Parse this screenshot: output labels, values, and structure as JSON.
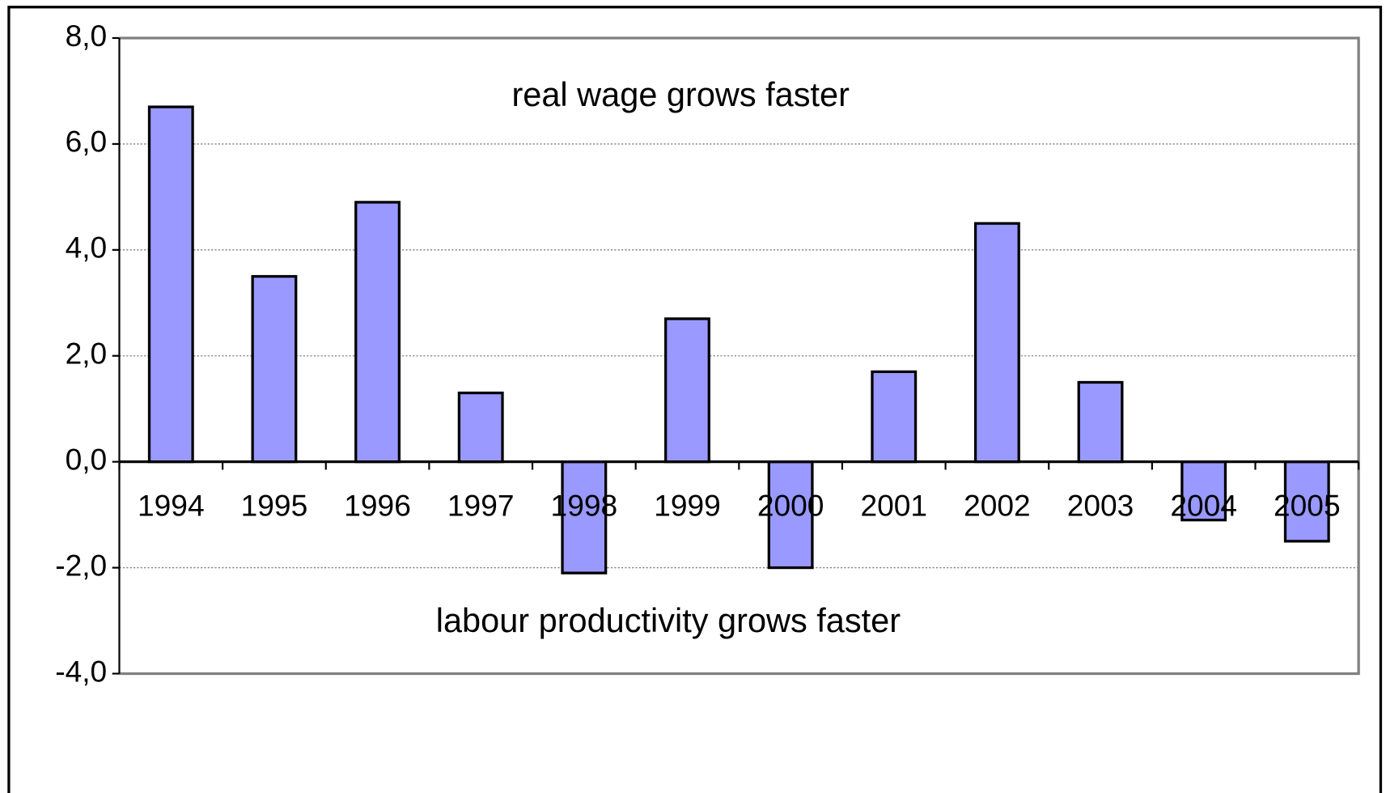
{
  "chart_data": {
    "type": "bar",
    "annotations": [
      "real wage grows faster",
      "labour productivity grows faster"
    ],
    "categories": [
      "1994",
      "1995",
      "1996",
      "1997",
      "1998",
      "1999",
      "2000",
      "2001",
      "2002",
      "2003",
      "2004",
      "2005"
    ],
    "values": [
      6.7,
      3.5,
      4.9,
      1.3,
      -2.1,
      2.7,
      -2.0,
      1.7,
      4.5,
      1.5,
      -1.1,
      -1.5
    ],
    "color": "#9999ff",
    "ylim": [
      -4,
      8
    ],
    "yticks": [
      {
        "value": -4,
        "label": "-4,0"
      },
      {
        "value": -2,
        "label": "-2,0"
      },
      {
        "value": 0,
        "label": "0,0"
      },
      {
        "value": 2,
        "label": "2,0"
      },
      {
        "value": 4,
        "label": "4,0"
      },
      {
        "value": 6,
        "label": "6,0"
      },
      {
        "value": 8,
        "label": "8,0"
      }
    ],
    "grid": true
  }
}
